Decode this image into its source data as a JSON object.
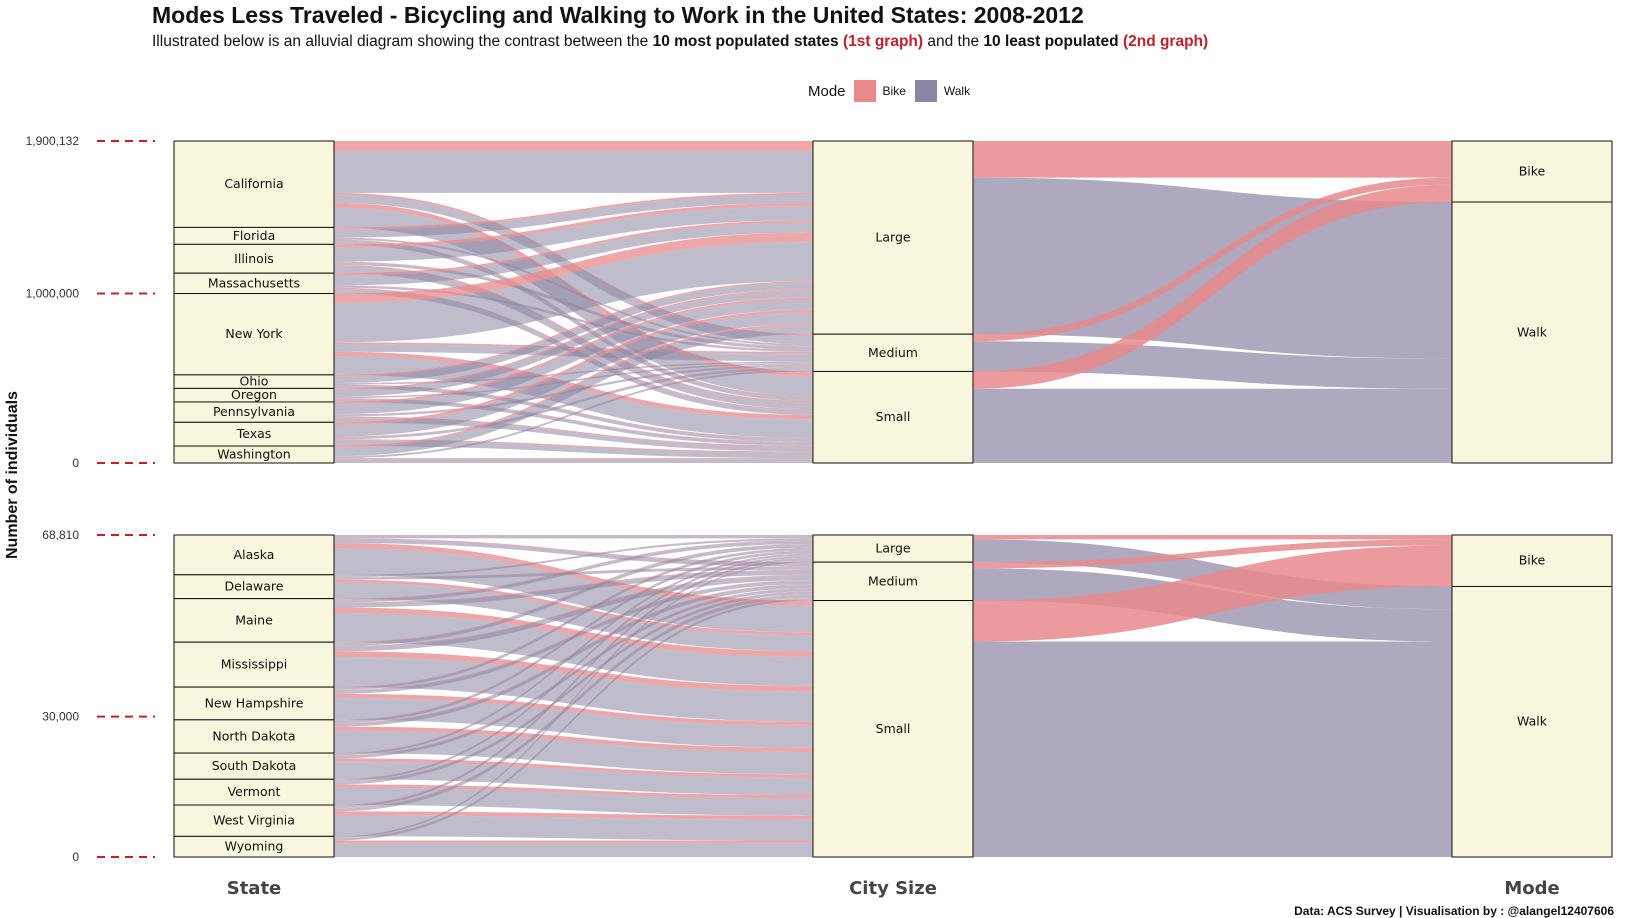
{
  "title": "Modes Less Traveled - Bicycling and Walking to Work in the United States: 2008-2012",
  "subtitle": {
    "intro": "Illustrated below is an alluvial diagram showing the contrast between the",
    "bold1": "10 most populated states",
    "red1": "(1st graph)",
    "mid": "and the",
    "bold2": "10 least populated",
    "red2": "(2nd graph)"
  },
  "legend": {
    "title": "Mode",
    "items": [
      {
        "label": "Bike",
        "color": "#e88a8c"
      },
      {
        "label": "Walk",
        "color": "#8b85a3"
      }
    ]
  },
  "y_axis_label": "Number of individuals",
  "caption": "Data: ACS Survey | Visualisation by : @alangel12407606",
  "colors": {
    "bike": "#e88a8c",
    "walk": "#8b85a3",
    "box_fill": "#f8f6dc",
    "tick_dash": "#d01c28"
  },
  "chart_data": [
    {
      "type": "alluvial",
      "axes": [
        "State",
        "City Size",
        "Mode"
      ],
      "ylim": [
        0,
        1900132
      ],
      "y_ticks": [
        {
          "value": 1900132,
          "label": "1,900,132"
        },
        {
          "value": 1000000,
          "label": "1,000,000"
        },
        {
          "value": 0,
          "label": "0"
        }
      ],
      "strata": {
        "State": [
          {
            "label": "California",
            "value": 510000
          },
          {
            "label": "Florida",
            "value": 100000
          },
          {
            "label": "Illinois",
            "value": 170000
          },
          {
            "label": "Massachusetts",
            "value": 120000
          },
          {
            "label": "New York",
            "value": 480000
          },
          {
            "label": "Ohio",
            "value": 80000
          },
          {
            "label": "Oregon",
            "value": 80000
          },
          {
            "label": "Pennsylvania",
            "value": 120000
          },
          {
            "label": "Texas",
            "value": 140000
          },
          {
            "label": "Washington",
            "value": 100132
          }
        ],
        "City Size": [
          {
            "label": "Large",
            "value": 1140000
          },
          {
            "label": "Medium",
            "value": 220000
          },
          {
            "label": "Small",
            "value": 540132
          }
        ],
        "Mode": [
          {
            "label": "Bike",
            "value": 360000
          },
          {
            "label": "Walk",
            "value": 1540132
          }
        ]
      }
    },
    {
      "type": "alluvial",
      "axes": [
        "State",
        "City Size",
        "Mode"
      ],
      "ylim": [
        0,
        68810
      ],
      "y_ticks": [
        {
          "value": 68810,
          "label": "68,810"
        },
        {
          "value": 30000,
          "label": "30,000"
        },
        {
          "value": 0,
          "label": "0"
        }
      ],
      "strata": {
        "State": [
          {
            "label": "Alaska",
            "value": 8500
          },
          {
            "label": "Delaware",
            "value": 5100
          },
          {
            "label": "Maine",
            "value": 9300
          },
          {
            "label": "Mississippi",
            "value": 9600
          },
          {
            "label": "New Hampshire",
            "value": 7000
          },
          {
            "label": "North Dakota",
            "value": 7100
          },
          {
            "label": "South Dakota",
            "value": 5600
          },
          {
            "label": "Vermont",
            "value": 5500
          },
          {
            "label": "West Virginia",
            "value": 6700
          },
          {
            "label": "Wyoming",
            "value": 4410
          }
        ],
        "City Size": [
          {
            "label": "Large",
            "value": 5800
          },
          {
            "label": "Medium",
            "value": 8200
          },
          {
            "label": "Small",
            "value": 54810
          }
        ],
        "Mode": [
          {
            "label": "Bike",
            "value": 11000
          },
          {
            "label": "Walk",
            "value": 57810
          }
        ]
      }
    }
  ]
}
